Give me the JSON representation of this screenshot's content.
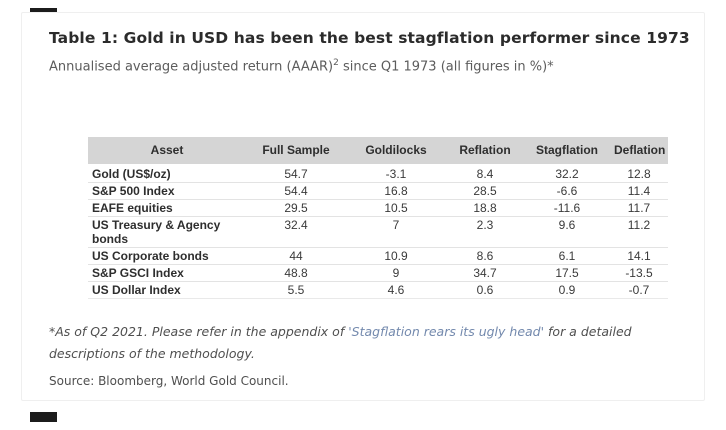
{
  "title": "Table 1: Gold in USD has been the best stagflation performer since 1973",
  "subtitle": {
    "prefix": "Annualised average adjusted return (AAAR)",
    "superscript": "2",
    "suffix": " since Q1 1973 (all figures in %)*"
  },
  "table": {
    "columns": [
      "Asset",
      "Full Sample",
      "Goldilocks",
      "Reflation",
      "Stagflation",
      "Deflation"
    ],
    "rows": [
      {
        "asset": "Gold (US$/oz)",
        "values": [
          "54.7",
          "-3.1",
          "8.4",
          "32.2",
          "12.8"
        ]
      },
      {
        "asset": "S&P 500 Index",
        "values": [
          "54.4",
          "16.8",
          "28.5",
          "-6.6",
          "11.4"
        ]
      },
      {
        "asset": "EAFE equities",
        "values": [
          "29.5",
          "10.5",
          "18.8",
          "-11.6",
          "11.7"
        ]
      },
      {
        "asset": "US Treasury & Agency bonds",
        "values": [
          "32.4",
          "7",
          "2.3",
          "9.6",
          "11.2"
        ]
      },
      {
        "asset": "US Corporate bonds",
        "values": [
          "44",
          "10.9",
          "8.6",
          "6.1",
          "14.1"
        ]
      },
      {
        "asset": "S&P GSCI Index",
        "values": [
          "48.8",
          "9",
          "34.7",
          "17.5",
          "-13.5"
        ]
      },
      {
        "asset": "US Dollar Index",
        "values": [
          "5.5",
          "4.6",
          "0.6",
          "0.9",
          "-0.7"
        ]
      }
    ]
  },
  "footnote": {
    "part1": "*As of Q2 2021. Please refer in the appendix of ",
    "link_text": "'Stagflation rears its ugly head'",
    "part2": " for a detailed descriptions of the methodology."
  },
  "source": "Source: Bloomberg, World Gold Council.",
  "colors": {
    "header_background": "#d5d5d5",
    "row_divider": "#e3e3e3",
    "title_text": "#2b2b2b",
    "body_text": "#3a3a3a",
    "muted_text": "#5c5c5c",
    "link_text": "#7389ad",
    "marker": "#1c1c1c",
    "card_border": "#efefef"
  }
}
